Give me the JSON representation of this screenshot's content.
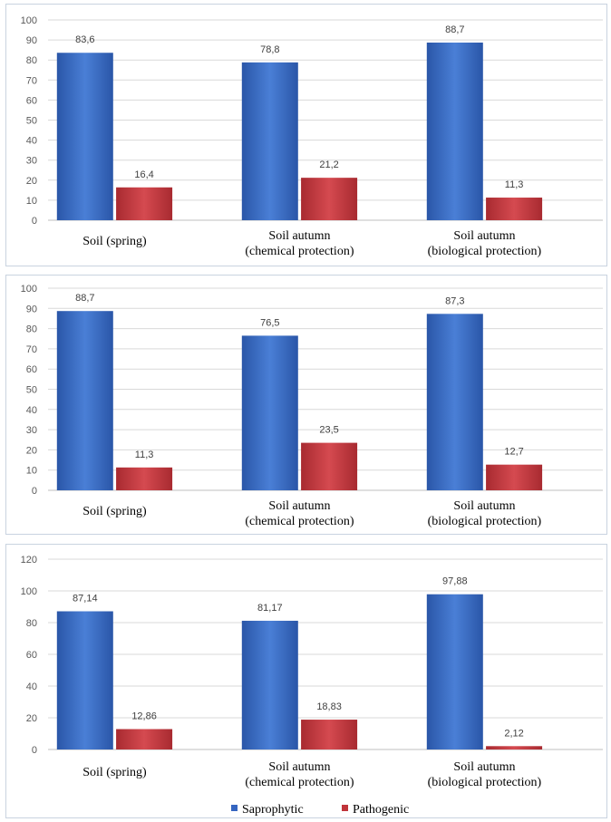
{
  "colors": {
    "saprophytic": "#3565c0",
    "pathogenic": "#c0343a",
    "grid": "#d9d9d9",
    "axis": "#bfbfbf"
  },
  "legend": {
    "items": [
      {
        "label": "Saprophytic",
        "color": "#3565c0"
      },
      {
        "label": "Pathogenic",
        "color": "#c0343a"
      }
    ],
    "placement": "bottom"
  },
  "chart_data": [
    {
      "type": "bar",
      "categories": [
        [
          "Soil (spring)"
        ],
        [
          "Soil autumn",
          "(chemical protection)"
        ],
        [
          "Soil autumn",
          "(biological protection)"
        ]
      ],
      "series": [
        {
          "name": "Saprophytic",
          "values": [
            83.6,
            78.8,
            88.7
          ],
          "labels": [
            "83,6",
            "78,8",
            "88,7"
          ]
        },
        {
          "name": "Pathogenic",
          "values": [
            16.4,
            21.2,
            11.3
          ],
          "labels": [
            "16,4",
            "21,2",
            "11,3"
          ]
        }
      ],
      "ylim": [
        0,
        100
      ],
      "yticks": [
        0,
        10,
        20,
        30,
        40,
        50,
        60,
        70,
        80,
        90,
        100
      ],
      "grid": true
    },
    {
      "type": "bar",
      "categories": [
        [
          "Soil (spring)"
        ],
        [
          "Soil autumn",
          "(chemical protection)"
        ],
        [
          "Soil autumn",
          "(biological protection)"
        ]
      ],
      "series": [
        {
          "name": "Saprophytic",
          "values": [
            88.7,
            76.5,
            87.3
          ],
          "labels": [
            "88,7",
            "76,5",
            "87,3"
          ]
        },
        {
          "name": "Pathogenic",
          "values": [
            11.3,
            23.5,
            12.7
          ],
          "labels": [
            "11,3",
            "23,5",
            "12,7"
          ]
        }
      ],
      "ylim": [
        0,
        100
      ],
      "yticks": [
        0,
        10,
        20,
        30,
        40,
        50,
        60,
        70,
        80,
        90,
        100
      ],
      "grid": true
    },
    {
      "type": "bar",
      "categories": [
        [
          "Soil (spring)"
        ],
        [
          "Soil autumn",
          "(chemical protection)"
        ],
        [
          "Soil autumn",
          "(biological protection)"
        ]
      ],
      "series": [
        {
          "name": "Saprophytic",
          "values": [
            87.14,
            81.17,
            97.88
          ],
          "labels": [
            "87,14",
            "81,17",
            "97,88"
          ]
        },
        {
          "name": "Pathogenic",
          "values": [
            12.86,
            18.83,
            2.12
          ],
          "labels": [
            "12,86",
            "18,83",
            "2,12"
          ]
        }
      ],
      "ylim": [
        0,
        120
      ],
      "yticks": [
        0,
        20,
        40,
        60,
        80,
        100,
        120
      ],
      "grid": true
    }
  ]
}
